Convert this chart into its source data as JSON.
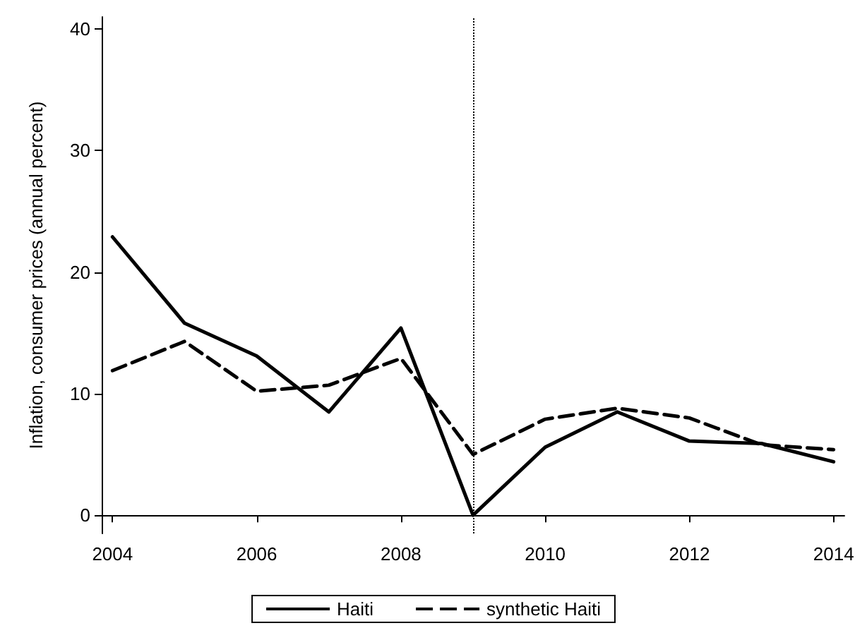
{
  "chart_data": {
    "type": "line",
    "ylabel": "Inflation, consumer prices (annual percent)",
    "x": [
      2004,
      2005,
      2006,
      2007,
      2008,
      2009,
      2010,
      2011,
      2012,
      2013,
      2014
    ],
    "series": [
      {
        "name": "Haiti",
        "color": "#000000",
        "line_style": "solid",
        "values": [
          22.9,
          15.8,
          13.1,
          8.5,
          15.4,
          0,
          5.6,
          8.5,
          6.1,
          5.9,
          4.4
        ]
      },
      {
        "name": "synthetic Haiti",
        "color": "#000000",
        "line_style": "dashed",
        "values": [
          11.9,
          14.3,
          10.2,
          10.7,
          12.9,
          5.0,
          7.9,
          8.8,
          8.0,
          5.8,
          5.4
        ]
      }
    ],
    "xlim": [
      2003.85,
      2014.15
    ],
    "xticks": [
      2004,
      2006,
      2008,
      2010,
      2012,
      2014
    ],
    "ylim": [
      -1.5,
      41
    ],
    "yticks": [
      0,
      10,
      20,
      30,
      40
    ],
    "ref_lines": [
      {
        "axis": "x",
        "value": 2009,
        "color": "#000000",
        "line_style": "dotted"
      }
    ],
    "grid": false,
    "legend": "bottom",
    "marker": "none"
  }
}
